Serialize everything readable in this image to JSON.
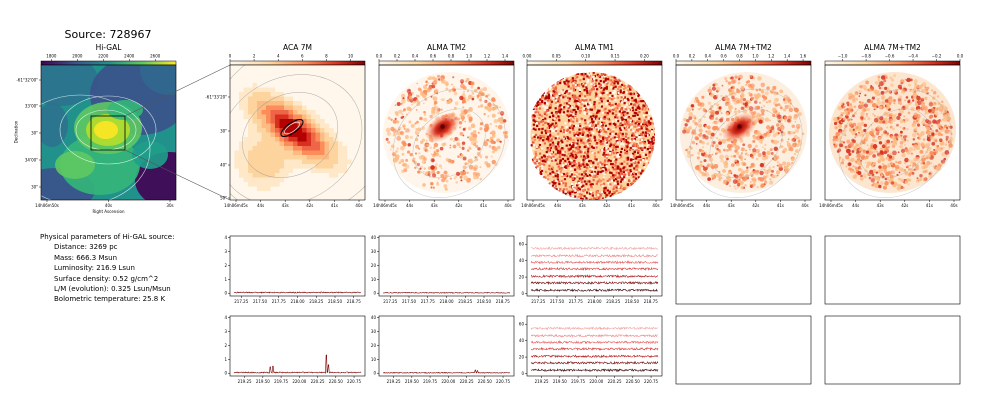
{
  "source_title": "Source: 728967",
  "params": {
    "heading": "Physical parameters of Hi-GAL source:",
    "lines": [
      "Distance: 3269 pc",
      "Mass: 666.3 Msun",
      "Luminosity: 216.9 Lsun",
      "Surface density: 0.52 g/cm^2",
      "L/M (evolution): 0.325 Lsun/Msun",
      "Bolometric temperature: 25.8 K"
    ]
  },
  "chart_data": [
    {
      "type": "heatmap",
      "title": "Hi-GAL",
      "colormap": "viridis",
      "colorbar_ticks": [
        "1800",
        "2000",
        "2200",
        "2400",
        "2600"
      ],
      "colorbar_range": [
        1720,
        2760
      ],
      "xlabel": "Right Ascension",
      "ylabel": "Declination",
      "x_ticks": [
        "14h06m50s",
        "40s",
        "30s"
      ],
      "y_ticks": [
        "-61°32'00\"",
        "33'00\"",
        "30\"",
        "34'00\"",
        "30\""
      ],
      "colors": {
        "low": "#440154",
        "mid": "#21918c",
        "high": "#fde725"
      }
    },
    {
      "type": "heatmap",
      "title": "ACA 7M",
      "colormap": "OrRd",
      "colorbar_ticks": [
        "0",
        "2",
        "4",
        "6",
        "8",
        "10"
      ],
      "colorbar_range": [
        0,
        11.2
      ],
      "x_ticks": [
        "14h06m45s",
        "44s",
        "43s",
        "42s",
        "41s",
        "40s"
      ],
      "y_ticks": [
        "-61°33'20\"",
        "30\"",
        "40\"",
        "50\""
      ]
    },
    {
      "type": "heatmap",
      "title": "ALMA TM2",
      "colormap": "OrRd",
      "colorbar_ticks": [
        "0.0",
        "0.2",
        "0.4",
        "0.6",
        "0.8",
        "1.0",
        "1.2",
        "1.4"
      ],
      "colorbar_range": [
        0,
        1.5
      ],
      "x_ticks": [
        "14h06m45s",
        "44s",
        "43s",
        "42s",
        "41s",
        "40s"
      ]
    },
    {
      "type": "heatmap",
      "title": "ALMA TM1",
      "colormap": "OrRd",
      "colorbar_ticks": [
        "0.00",
        "0.05",
        "0.10",
        "0.15",
        "0.20"
      ],
      "colorbar_range": [
        0,
        0.23
      ],
      "x_ticks": [
        "14h06m45s",
        "44s",
        "43s",
        "42s",
        "41s",
        "40s"
      ]
    },
    {
      "type": "heatmap",
      "title": "ALMA 7M+TM2",
      "colormap": "OrRd",
      "colorbar_ticks": [
        "0.0",
        "0.2",
        "0.4",
        "0.6",
        "0.8",
        "1.0",
        "1.2",
        "1.4",
        "1.6"
      ],
      "colorbar_range": [
        0,
        1.7
      ],
      "x_ticks": [
        "14h06m45s",
        "44s",
        "43s",
        "42s",
        "41s",
        "40s"
      ]
    },
    {
      "type": "heatmap",
      "title": "ALMA 7M+TM2",
      "colormap": "OrRd",
      "colorbar_ticks": [
        "−1.0",
        "−0.8",
        "−0.6",
        "−0.4",
        "−0.2",
        "0.0"
      ],
      "colorbar_range": [
        -1.15,
        0
      ],
      "x_ticks": [
        "14h06m45s",
        "44s",
        "43s",
        "42s",
        "41s",
        "40s"
      ]
    },
    {
      "type": "line",
      "panel": "spectrum-aca-upper",
      "y_ticks": [
        0,
        1,
        2,
        3,
        4
      ],
      "ylim": [
        -0.2,
        4.1
      ],
      "x_ticks": [
        "217.25",
        "217.50",
        "217.75",
        "218.00",
        "218.25",
        "218.50",
        "218.75"
      ],
      "xlim": [
        217.1,
        218.9
      ],
      "series": [
        {
          "baseline": 0.05,
          "noise": 0.04,
          "spikes": []
        }
      ]
    },
    {
      "type": "line",
      "panel": "spectrum-tm2-upper",
      "y_ticks": [
        0,
        10,
        20,
        30,
        40
      ],
      "ylim": [
        -2,
        41
      ],
      "x_ticks": [
        "217.25",
        "217.50",
        "217.75",
        "218.00",
        "218.25",
        "218.50",
        "218.75"
      ],
      "xlim": [
        217.1,
        218.9
      ],
      "series": [
        {
          "baseline": 0.3,
          "noise": 0.3,
          "spikes": []
        }
      ]
    },
    {
      "type": "line",
      "panel": "spectrum-tm1-upper",
      "y_ticks": [
        0,
        20,
        40,
        60
      ],
      "ylim": [
        -3,
        70
      ],
      "x_ticks": [
        "217.25",
        "217.50",
        "217.75",
        "218.00",
        "218.25",
        "218.50",
        "218.75"
      ],
      "xlim": [
        217.1,
        218.9
      ],
      "series": [
        {
          "baseline": 4,
          "noise": 1.3,
          "color": "#3b0a0a"
        },
        {
          "baseline": 13,
          "noise": 1.3,
          "color": "#7a1313"
        },
        {
          "baseline": 21,
          "noise": 1.3,
          "color": "#b01e1e"
        },
        {
          "baseline": 30,
          "noise": 1.3,
          "color": "#d93b3b"
        },
        {
          "baseline": 38,
          "noise": 1.3,
          "color": "#e86060"
        },
        {
          "baseline": 46,
          "noise": 1.3,
          "color": "#f08a8a"
        },
        {
          "baseline": 55,
          "noise": 1.3,
          "color": "#f4a3a3"
        }
      ]
    },
    {
      "type": "line",
      "panel": "spectrum-aca-lower",
      "y_ticks": [
        0,
        1,
        2,
        3,
        4
      ],
      "ylim": [
        -0.2,
        4.1
      ],
      "x_ticks": [
        "219.25",
        "219.50",
        "219.75",
        "220.00",
        "220.25",
        "220.50",
        "220.75"
      ],
      "xlim": [
        219.05,
        220.9
      ],
      "series": [
        {
          "baseline": 0.05,
          "noise": 0.04,
          "spikes": [
            [
              219.6,
              0.45
            ],
            [
              219.64,
              0.5
            ],
            [
              220.37,
              1.3
            ],
            [
              220.4,
              0.6
            ]
          ]
        }
      ]
    },
    {
      "type": "line",
      "panel": "spectrum-tm2-lower",
      "y_ticks": [
        0,
        10,
        20,
        30,
        40
      ],
      "ylim": [
        -2,
        41
      ],
      "x_ticks": [
        "219.25",
        "219.50",
        "219.75",
        "220.00",
        "220.25",
        "220.50",
        "220.75"
      ],
      "xlim": [
        219.05,
        220.9
      ],
      "series": [
        {
          "baseline": 0.3,
          "noise": 0.3,
          "spikes": [
            [
              220.37,
              2.2
            ],
            [
              220.4,
              1.8
            ]
          ]
        }
      ]
    },
    {
      "type": "line",
      "panel": "spectrum-tm1-lower",
      "y_ticks": [
        0,
        20,
        40,
        60
      ],
      "ylim": [
        -3,
        70
      ],
      "x_ticks": [
        "219.25",
        "219.50",
        "219.75",
        "220.00",
        "220.25",
        "220.50",
        "220.75"
      ],
      "xlim": [
        219.05,
        220.9
      ],
      "series": [
        {
          "baseline": 4,
          "noise": 1.3,
          "color": "#3b0a0a"
        },
        {
          "baseline": 13,
          "noise": 1.3,
          "color": "#7a1313"
        },
        {
          "baseline": 21,
          "noise": 1.3,
          "color": "#b01e1e"
        },
        {
          "baseline": 30,
          "noise": 1.3,
          "color": "#d93b3b"
        },
        {
          "baseline": 38,
          "noise": 1.3,
          "color": "#e86060"
        },
        {
          "baseline": 46,
          "noise": 1.3,
          "color": "#f08a8a"
        },
        {
          "baseline": 55,
          "noise": 1.3,
          "color": "#f4a3a3"
        }
      ]
    }
  ]
}
